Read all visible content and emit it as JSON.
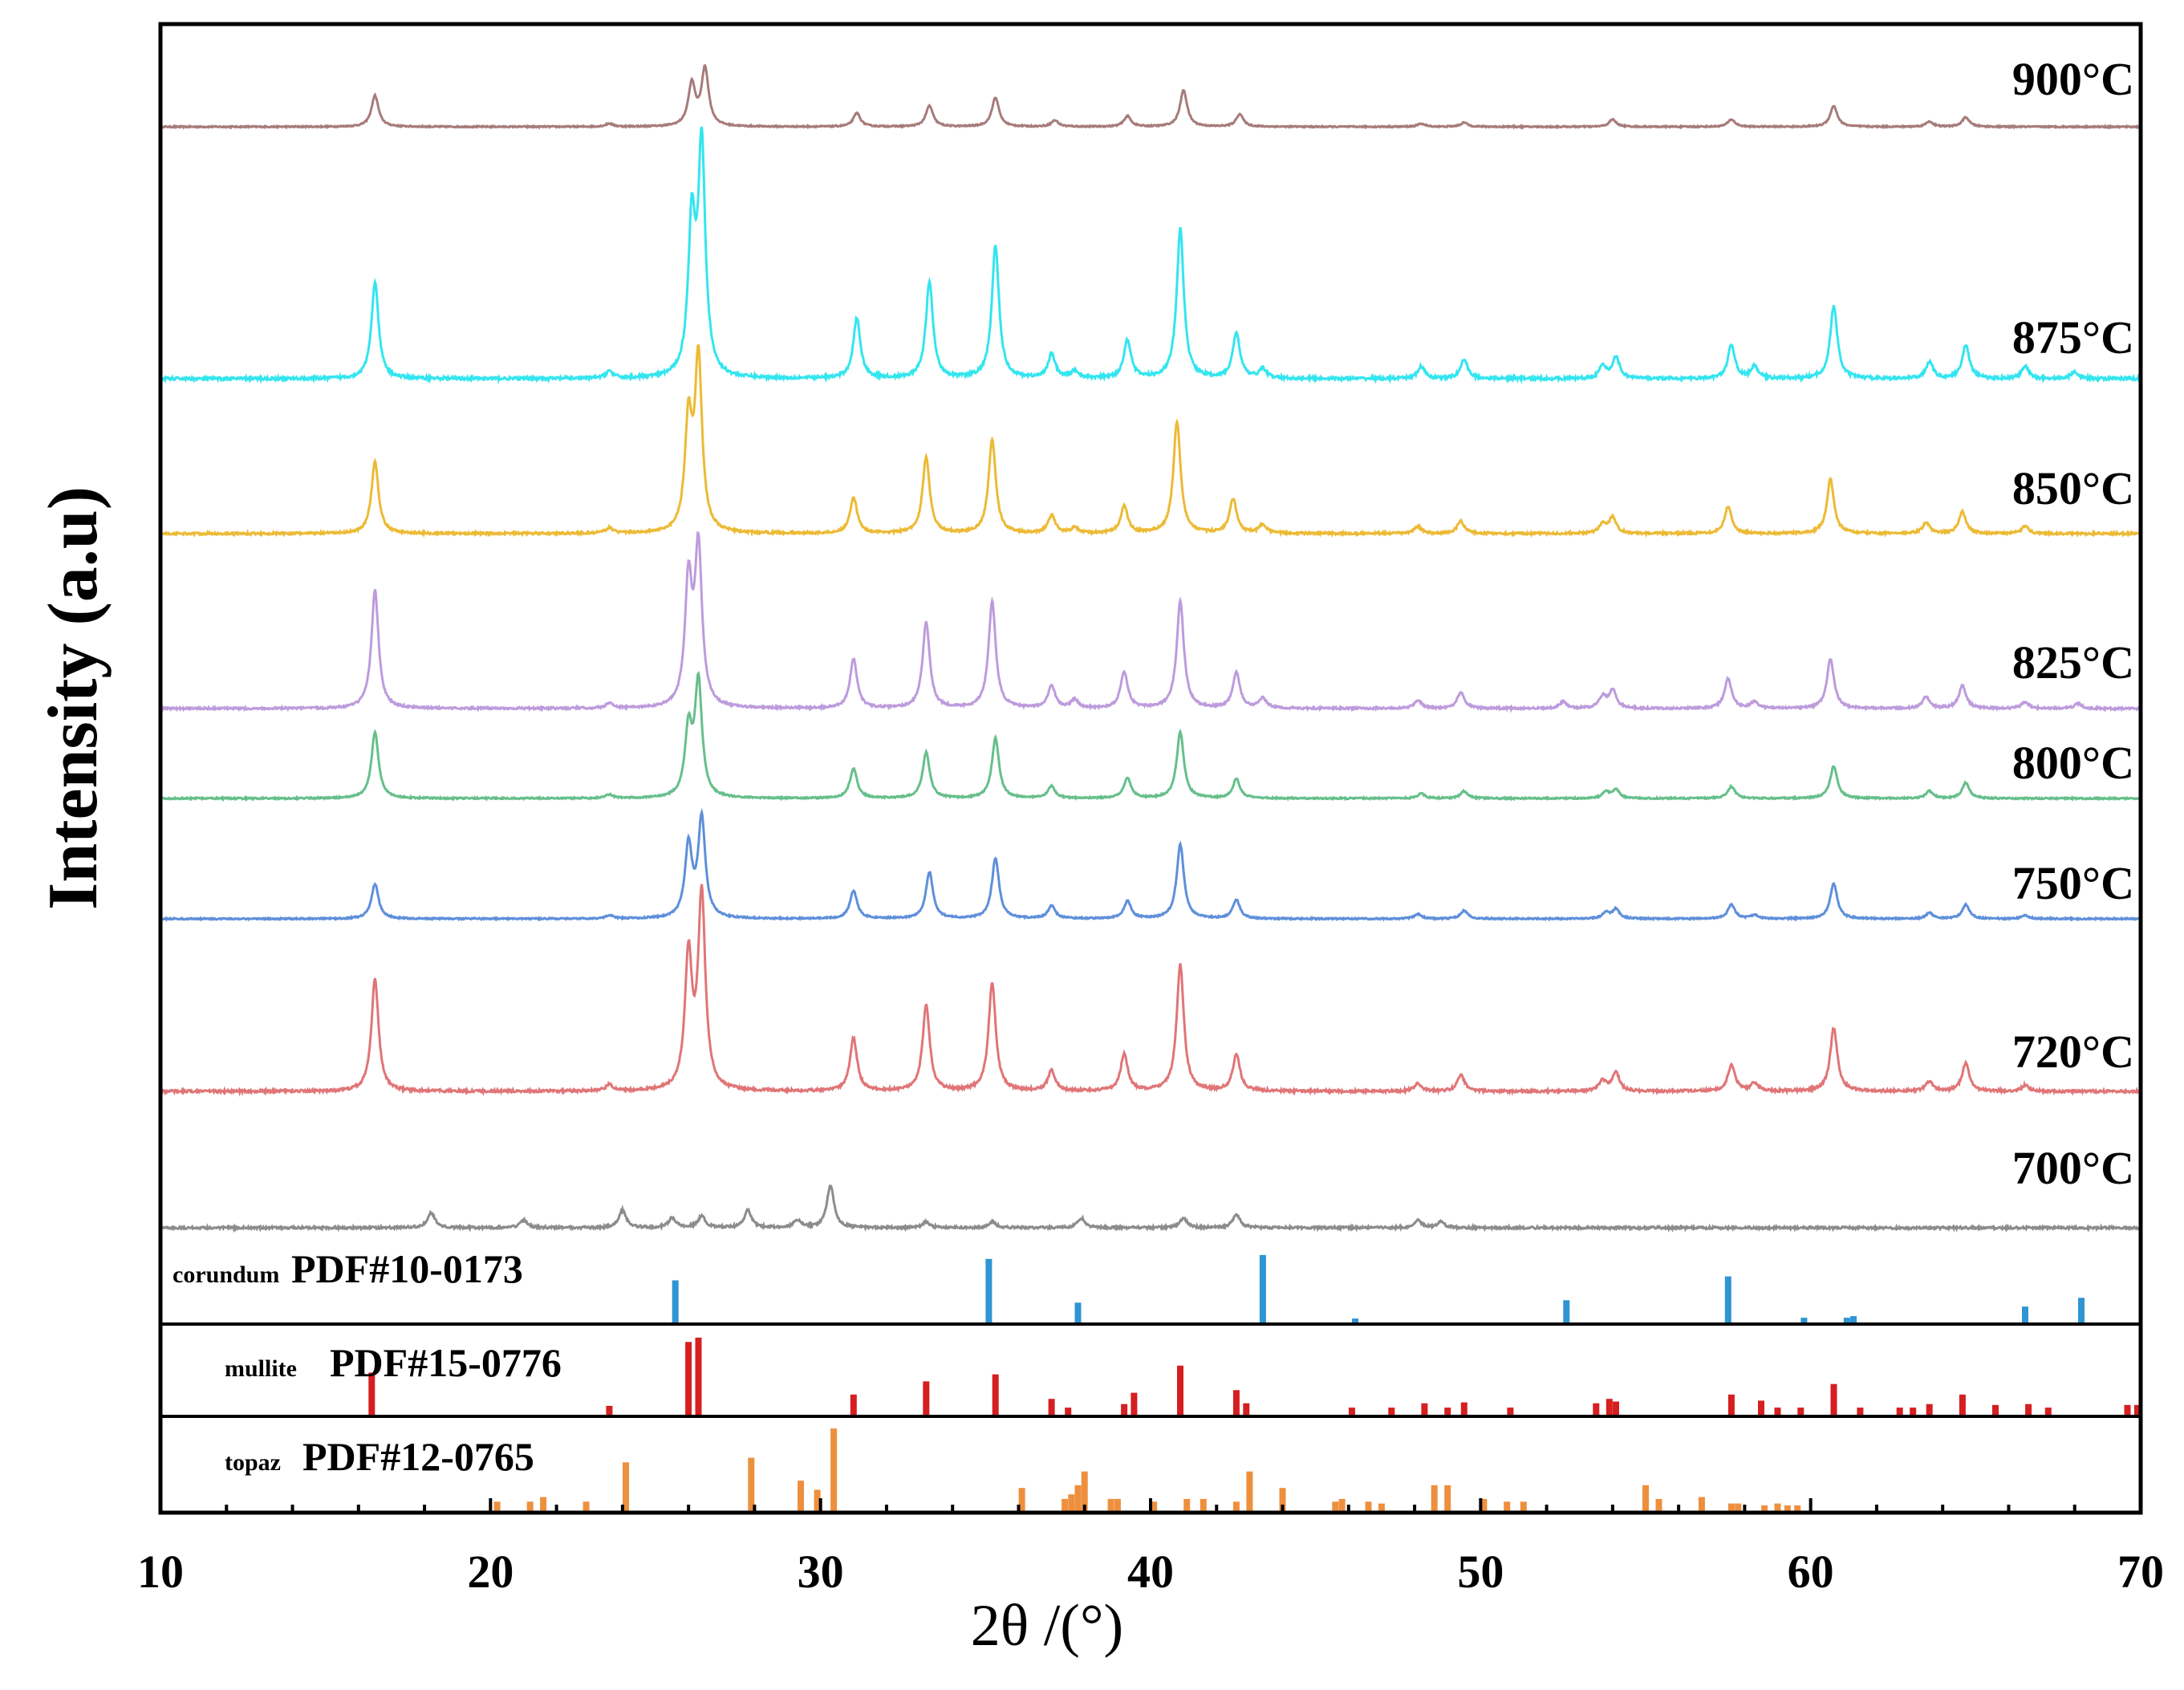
{
  "chart_data": {
    "type": "line",
    "xlabel": "2θ /(°)",
    "ylabel": "Intensity (a.u)",
    "xlim": [
      10,
      70
    ],
    "xticks": [
      "10",
      "20",
      "30",
      "40",
      "50",
      "60",
      "70"
    ],
    "grid": false,
    "series": [
      {
        "name": "900°C",
        "color": "#a77b7b",
        "peaks": [
          [
            16.5,
            0.3
          ],
          [
            23.6,
            0.03
          ],
          [
            26.1,
            0.4
          ],
          [
            26.5,
            0.55
          ],
          [
            31.1,
            0.13
          ],
          [
            33.3,
            0.2
          ],
          [
            35.3,
            0.28
          ],
          [
            37.1,
            0.06
          ],
          [
            39.3,
            0.1
          ],
          [
            41.0,
            0.35
          ],
          [
            42.7,
            0.12
          ],
          [
            48.2,
            0.03
          ],
          [
            49.5,
            0.04
          ],
          [
            54.0,
            0.07
          ],
          [
            57.6,
            0.07
          ],
          [
            60.7,
            0.2
          ],
          [
            63.6,
            0.05
          ],
          [
            64.7,
            0.09
          ]
        ]
      },
      {
        "name": "875°C",
        "color": "#33e5ef",
        "peaks": [
          [
            16.5,
            0.4
          ],
          [
            23.6,
            0.03
          ],
          [
            26.1,
            0.62
          ],
          [
            26.4,
            0.95
          ],
          [
            31.1,
            0.25
          ],
          [
            33.3,
            0.4
          ],
          [
            35.3,
            0.55
          ],
          [
            37.0,
            0.1
          ],
          [
            37.7,
            0.03
          ],
          [
            39.3,
            0.16
          ],
          [
            40.9,
            0.62
          ],
          [
            42.6,
            0.19
          ],
          [
            43.4,
            0.04
          ],
          [
            48.2,
            0.05
          ],
          [
            49.5,
            0.08
          ],
          [
            53.7,
            0.05
          ],
          [
            54.1,
            0.09
          ],
          [
            57.6,
            0.14
          ],
          [
            58.3,
            0.05
          ],
          [
            60.7,
            0.3
          ],
          [
            63.6,
            0.07
          ],
          [
            64.7,
            0.14
          ],
          [
            66.5,
            0.05
          ],
          [
            68.0,
            0.03
          ]
        ]
      },
      {
        "name": "850°C",
        "color": "#ecba35",
        "peaks": [
          [
            16.5,
            0.4
          ],
          [
            23.6,
            0.03
          ],
          [
            26.0,
            0.6
          ],
          [
            26.3,
            0.95
          ],
          [
            31.0,
            0.2
          ],
          [
            33.2,
            0.42
          ],
          [
            35.2,
            0.52
          ],
          [
            37.0,
            0.1
          ],
          [
            37.7,
            0.03
          ],
          [
            39.2,
            0.15
          ],
          [
            40.8,
            0.62
          ],
          [
            42.5,
            0.19
          ],
          [
            43.4,
            0.05
          ],
          [
            48.1,
            0.04
          ],
          [
            49.4,
            0.07
          ],
          [
            53.7,
            0.05
          ],
          [
            54.0,
            0.09
          ],
          [
            57.5,
            0.15
          ],
          [
            60.6,
            0.3
          ],
          [
            63.5,
            0.06
          ],
          [
            64.6,
            0.12
          ],
          [
            66.5,
            0.04
          ]
        ]
      },
      {
        "name": "825°C",
        "color": "#bd9bdc",
        "peaks": [
          [
            16.5,
            0.72
          ],
          [
            23.6,
            0.03
          ],
          [
            26.0,
            0.75
          ],
          [
            26.3,
            0.95
          ],
          [
            31.0,
            0.3
          ],
          [
            33.2,
            0.52
          ],
          [
            35.2,
            0.65
          ],
          [
            37.0,
            0.14
          ],
          [
            37.7,
            0.05
          ],
          [
            39.2,
            0.22
          ],
          [
            40.9,
            0.65
          ],
          [
            42.6,
            0.22
          ],
          [
            43.4,
            0.06
          ],
          [
            48.1,
            0.05
          ],
          [
            49.4,
            0.1
          ],
          [
            52.5,
            0.04
          ],
          [
            53.7,
            0.07
          ],
          [
            54.0,
            0.11
          ],
          [
            57.5,
            0.18
          ],
          [
            58.3,
            0.04
          ],
          [
            60.6,
            0.3
          ],
          [
            63.5,
            0.07
          ],
          [
            64.6,
            0.14
          ],
          [
            66.5,
            0.04
          ],
          [
            68.1,
            0.03
          ]
        ]
      },
      {
        "name": "800°C",
        "color": "#66bf8b",
        "peaks": [
          [
            16.5,
            0.55
          ],
          [
            23.6,
            0.03
          ],
          [
            26.0,
            0.55
          ],
          [
            26.3,
            0.95
          ],
          [
            31.0,
            0.25
          ],
          [
            33.2,
            0.38
          ],
          [
            35.3,
            0.5
          ],
          [
            37.0,
            0.1
          ],
          [
            39.3,
            0.17
          ],
          [
            40.9,
            0.55
          ],
          [
            42.6,
            0.16
          ],
          [
            48.2,
            0.04
          ],
          [
            49.5,
            0.06
          ],
          [
            53.8,
            0.05
          ],
          [
            54.1,
            0.07
          ],
          [
            57.6,
            0.1
          ],
          [
            60.7,
            0.27
          ],
          [
            63.6,
            0.06
          ],
          [
            64.7,
            0.13
          ]
        ]
      },
      {
        "name": "750°C",
        "color": "#5e8fda",
        "peaks": [
          [
            16.5,
            0.3
          ],
          [
            23.6,
            0.03
          ],
          [
            26.0,
            0.62
          ],
          [
            26.4,
            0.85
          ],
          [
            31.0,
            0.24
          ],
          [
            33.3,
            0.4
          ],
          [
            35.3,
            0.52
          ],
          [
            37.0,
            0.11
          ],
          [
            39.3,
            0.15
          ],
          [
            40.9,
            0.64
          ],
          [
            42.6,
            0.16
          ],
          [
            48.1,
            0.04
          ],
          [
            49.5,
            0.07
          ],
          [
            53.8,
            0.05
          ],
          [
            54.1,
            0.08
          ],
          [
            57.6,
            0.12
          ],
          [
            58.3,
            0.03
          ],
          [
            60.7,
            0.3
          ],
          [
            63.6,
            0.05
          ],
          [
            64.7,
            0.12
          ],
          [
            66.5,
            0.03
          ]
        ]
      },
      {
        "name": "720°C",
        "color": "#e07577",
        "peaks": [
          [
            16.5,
            0.55
          ],
          [
            23.6,
            0.03
          ],
          [
            26.0,
            0.65
          ],
          [
            26.4,
            0.95
          ],
          [
            31.0,
            0.26
          ],
          [
            33.2,
            0.42
          ],
          [
            35.2,
            0.53
          ],
          [
            37.0,
            0.1
          ],
          [
            39.2,
            0.18
          ],
          [
            40.9,
            0.62
          ],
          [
            42.6,
            0.18
          ],
          [
            48.1,
            0.04
          ],
          [
            49.4,
            0.08
          ],
          [
            53.7,
            0.05
          ],
          [
            54.1,
            0.09
          ],
          [
            57.6,
            0.13
          ],
          [
            58.3,
            0.04
          ],
          [
            60.7,
            0.31
          ],
          [
            63.6,
            0.05
          ],
          [
            64.7,
            0.14
          ],
          [
            66.5,
            0.03
          ]
        ]
      },
      {
        "name": "700°C",
        "color": "#8c8c8c",
        "peaks": [
          [
            18.2,
            0.08
          ],
          [
            21.0,
            0.04
          ],
          [
            24.0,
            0.09
          ],
          [
            25.5,
            0.05
          ],
          [
            26.4,
            0.06
          ],
          [
            27.8,
            0.09
          ],
          [
            29.3,
            0.04
          ],
          [
            30.3,
            0.22
          ],
          [
            33.2,
            0.03
          ],
          [
            35.2,
            0.03
          ],
          [
            37.9,
            0.05
          ],
          [
            41.0,
            0.05
          ],
          [
            42.6,
            0.07
          ],
          [
            48.1,
            0.04
          ],
          [
            48.8,
            0.03
          ]
        ]
      }
    ],
    "reference_patterns": [
      {
        "mineral": "corundum",
        "pdf": "PDF#10-0173",
        "color": "#2f95d3",
        "lines": [
          [
            25.6,
            0.55
          ],
          [
            35.1,
            0.82
          ],
          [
            37.8,
            0.27
          ],
          [
            43.4,
            0.87
          ],
          [
            46.2,
            0.07
          ],
          [
            52.6,
            0.3
          ],
          [
            57.5,
            0.6
          ],
          [
            59.8,
            0.08
          ],
          [
            61.3,
            0.1
          ],
          [
            61.1,
            0.08
          ],
          [
            66.5,
            0.22
          ],
          [
            68.2,
            0.33
          ]
        ]
      },
      {
        "mineral": "mullite",
        "pdf": "PDF#15-0776",
        "color": "#d51f20",
        "lines": [
          [
            16.4,
            0.5
          ],
          [
            23.6,
            0.12
          ],
          [
            26.0,
            0.85
          ],
          [
            26.3,
            0.9
          ],
          [
            31.0,
            0.25
          ],
          [
            33.2,
            0.4
          ],
          [
            35.3,
            0.48
          ],
          [
            37.0,
            0.2
          ],
          [
            37.5,
            0.1
          ],
          [
            39.2,
            0.14
          ],
          [
            39.5,
            0.27
          ],
          [
            40.9,
            0.58
          ],
          [
            42.6,
            0.3
          ],
          [
            42.9,
            0.15
          ],
          [
            46.1,
            0.1
          ],
          [
            47.3,
            0.1
          ],
          [
            48.3,
            0.15
          ],
          [
            49.0,
            0.1
          ],
          [
            49.5,
            0.16
          ],
          [
            50.9,
            0.1
          ],
          [
            53.5,
            0.15
          ],
          [
            53.9,
            0.2
          ],
          [
            54.1,
            0.17
          ],
          [
            57.6,
            0.25
          ],
          [
            58.5,
            0.18
          ],
          [
            59.0,
            0.1
          ],
          [
            59.7,
            0.1
          ],
          [
            60.7,
            0.37
          ],
          [
            61.5,
            0.1
          ],
          [
            62.7,
            0.1
          ],
          [
            63.1,
            0.1
          ],
          [
            63.6,
            0.14
          ],
          [
            64.6,
            0.25
          ],
          [
            65.6,
            0.13
          ],
          [
            66.6,
            0.14
          ],
          [
            67.2,
            0.1
          ],
          [
            69.6,
            0.13
          ],
          [
            69.9,
            0.13
          ]
        ]
      },
      {
        "mineral": "topaz",
        "pdf": "PDF#12-0765",
        "color": "#ee8f3e",
        "lines": [
          [
            20.2,
            0.12
          ],
          [
            21.2,
            0.12
          ],
          [
            21.6,
            0.17
          ],
          [
            22.9,
            0.12
          ],
          [
            24.1,
            0.55
          ],
          [
            27.9,
            0.6
          ],
          [
            29.4,
            0.35
          ],
          [
            29.9,
            0.25
          ],
          [
            30.4,
            0.92
          ],
          [
            36.1,
            0.27
          ],
          [
            37.4,
            0.15
          ],
          [
            37.6,
            0.2
          ],
          [
            37.8,
            0.3
          ],
          [
            38.0,
            0.45
          ],
          [
            38.8,
            0.15
          ],
          [
            39.0,
            0.15
          ],
          [
            40.1,
            0.12
          ],
          [
            41.1,
            0.15
          ],
          [
            41.6,
            0.15
          ],
          [
            42.6,
            0.12
          ],
          [
            43.0,
            0.45
          ],
          [
            44.0,
            0.27
          ],
          [
            45.6,
            0.12
          ],
          [
            45.8,
            0.15
          ],
          [
            46.6,
            0.12
          ],
          [
            47.0,
            0.1
          ],
          [
            48.6,
            0.3
          ],
          [
            49.0,
            0.3
          ],
          [
            50.1,
            0.15
          ],
          [
            50.8,
            0.12
          ],
          [
            51.3,
            0.12
          ],
          [
            55.0,
            0.3
          ],
          [
            55.4,
            0.15
          ],
          [
            56.7,
            0.17
          ],
          [
            57.6,
            0.1
          ],
          [
            57.8,
            0.1
          ],
          [
            58.6,
            0.08
          ],
          [
            59.0,
            0.1
          ],
          [
            59.3,
            0.08
          ],
          [
            59.6,
            0.08
          ]
        ]
      }
    ]
  }
}
